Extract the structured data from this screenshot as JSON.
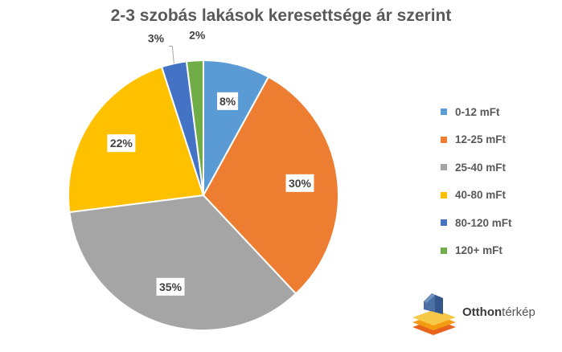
{
  "chart_data": {
    "type": "pie",
    "title": "2-3 szobás lakások keresettsége ár szerint",
    "categories": [
      "0-12 mFt",
      "12-25 mFt",
      "25-40 mFt",
      "40-80 mFt",
      "80-120 mFt",
      "120+ mFt"
    ],
    "values": [
      8,
      30,
      35,
      22,
      3,
      2
    ],
    "data_labels": [
      "8%",
      "30%",
      "35%",
      "22%",
      "3%",
      "2%"
    ],
    "colors": [
      "#5B9BD5",
      "#ED7D31",
      "#A5A5A5",
      "#FFC000",
      "#4472C4",
      "#70AD47"
    ],
    "unit": "%",
    "start_angle_deg": 0,
    "direction": "clockwise",
    "legend_position": "right"
  },
  "logo": {
    "bold": "Otthon",
    "thin": "térkép"
  }
}
